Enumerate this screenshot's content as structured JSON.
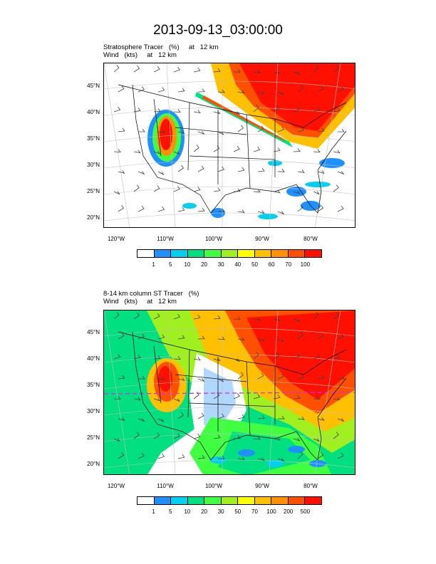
{
  "title": "2013-09-13_03:00:00",
  "colors": {
    "palette": [
      "#ffffff",
      "#1e90ff",
      "#00d0f0",
      "#00e080",
      "#40ff40",
      "#a0f020",
      "#ffff00",
      "#ffc000",
      "#ff9000",
      "#ff5000",
      "#ff1000"
    ],
    "outline": "#000000",
    "grid": "#c0c0c0",
    "wind_barb": "#404040",
    "dashed_line": "#d030f0"
  },
  "panels": [
    {
      "title_line1": "Stratosphere Tracer   (%)     at   12 km",
      "title_line2": "Wind   (kts)     at   12 km",
      "lat_labels": [
        "45°N",
        "40°N",
        "35°N",
        "30°N",
        "25°N",
        "20°N"
      ],
      "lon_labels": [
        "120°W",
        "110°W",
        "100°W",
        "90°W",
        "80°W"
      ],
      "colorbar_labels": [
        "1",
        "5",
        "10",
        "20",
        "30",
        "40",
        "50",
        "60",
        "70",
        "100"
      ],
      "features": [
        "stratosphere-tracer-shading",
        "wind-barbs",
        "political-boundaries",
        "lat-lon-grid"
      ]
    },
    {
      "title_line1": "8-14 km column ST Tracer   (%)",
      "title_line2": "Wind   (kts)     at   12 km",
      "lat_labels": [
        "45°N",
        "40°N",
        "35°N",
        "30°N",
        "25°N",
        "20°N"
      ],
      "lon_labels": [
        "120°W",
        "110°W",
        "100°W",
        "90°W",
        "80°W"
      ],
      "colorbar_labels": [
        "1",
        "5",
        "10",
        "20",
        "30",
        "50",
        "70",
        "100",
        "200",
        "500"
      ],
      "features": [
        "column-tracer-shading",
        "wind-barbs",
        "political-boundaries",
        "lat-lon-grid",
        "dashed-line"
      ]
    }
  ]
}
